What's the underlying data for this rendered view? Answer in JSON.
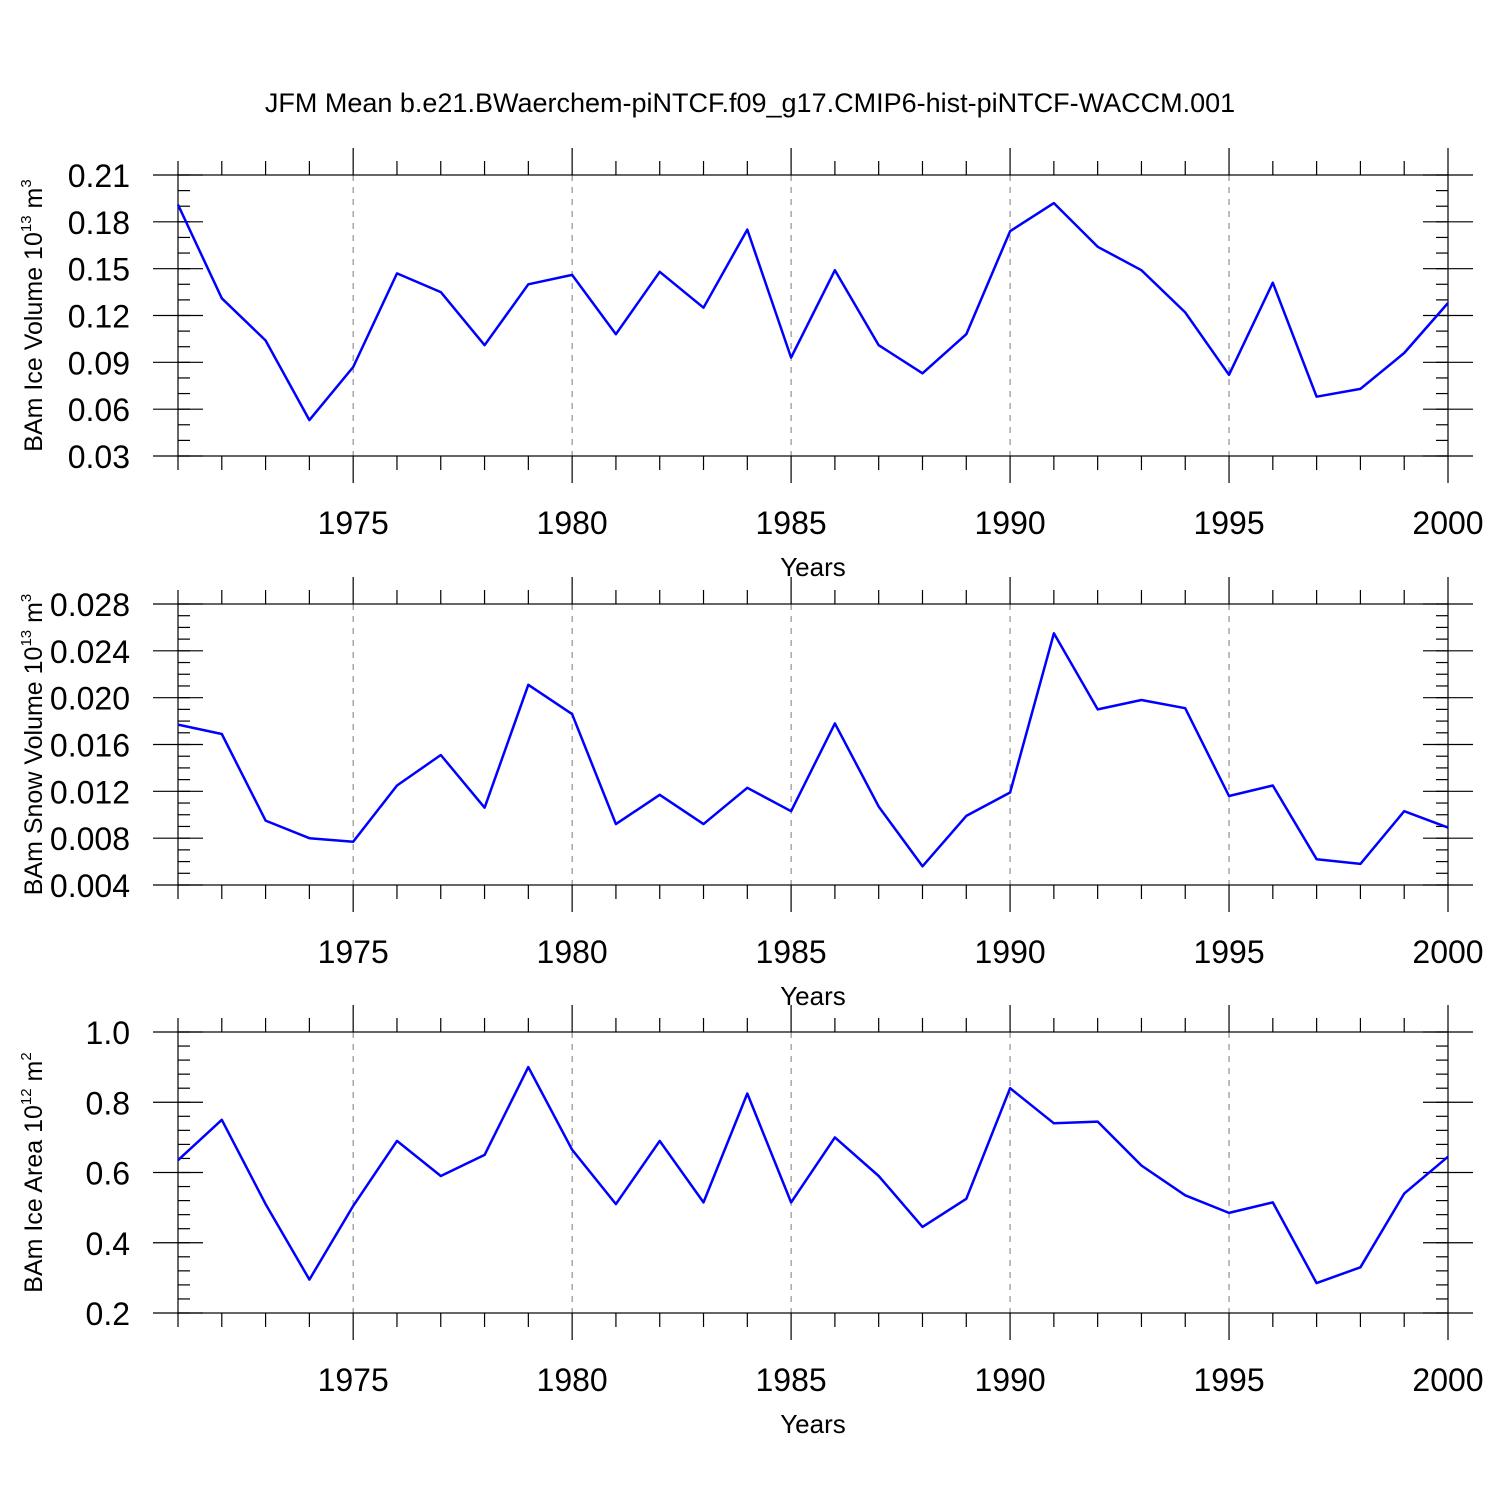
{
  "title": "JFM Mean b.e21.BWaerchem-piNTCF.f09_g17.CMIP6-hist-piNTCF-WACCM.001",
  "colors": {
    "series": "#0000ff",
    "grid": "#7a7a7a",
    "axis": "#000000"
  },
  "chart_data": [
    {
      "type": "line",
      "name": "ice-volume",
      "ylabel_main": "BAm Ice Volume 10",
      "ylabel_exp": "13",
      "ylabel_unit": " m",
      "ylabel_unit_exp": "3",
      "xlabel": "Years",
      "xlim": [
        1971,
        2000
      ],
      "ylim": [
        0.03,
        0.21
      ],
      "x_ticks": [
        1975,
        1980,
        1985,
        1990,
        1995,
        2000
      ],
      "x_tick_labels": [
        "1975",
        "1980",
        "1985",
        "1990",
        "1995",
        "2000"
      ],
      "y_ticks": [
        0.03,
        0.06,
        0.09,
        0.12,
        0.15,
        0.18,
        0.21
      ],
      "y_tick_labels": [
        "0.03",
        "0.06",
        "0.09",
        "0.12",
        "0.15",
        "0.18",
        "0.21"
      ],
      "y_minor_step": 0.01,
      "x": [
        1971,
        1972,
        1973,
        1974,
        1975,
        1976,
        1977,
        1978,
        1979,
        1980,
        1981,
        1982,
        1983,
        1984,
        1985,
        1986,
        1987,
        1988,
        1989,
        1990,
        1991,
        1992,
        1993,
        1994,
        1995,
        1996,
        1997,
        1998,
        1999,
        2000
      ],
      "y": [
        0.191,
        0.131,
        0.104,
        0.053,
        0.087,
        0.147,
        0.135,
        0.101,
        0.14,
        0.146,
        0.108,
        0.148,
        0.125,
        0.175,
        0.093,
        0.149,
        0.101,
        0.083,
        0.108,
        0.174,
        0.192,
        0.164,
        0.149,
        0.122,
        0.082,
        0.141,
        0.068,
        0.073,
        0.096,
        0.128
      ]
    },
    {
      "type": "line",
      "name": "snow-volume",
      "ylabel_main": "BAm Snow Volume 10",
      "ylabel_exp": "13",
      "ylabel_unit": " m",
      "ylabel_unit_exp": "3",
      "xlabel": "Years",
      "xlim": [
        1971,
        2000
      ],
      "ylim": [
        0.004,
        0.028
      ],
      "x_ticks": [
        1975,
        1980,
        1985,
        1990,
        1995,
        2000
      ],
      "x_tick_labels": [
        "1975",
        "1980",
        "1985",
        "1990",
        "1995",
        "2000"
      ],
      "y_ticks": [
        0.004,
        0.008,
        0.012,
        0.016,
        0.02,
        0.024,
        0.028
      ],
      "y_tick_labels": [
        "0.004",
        "0.008",
        "0.012",
        "0.016",
        "0.020",
        "0.024",
        "0.028"
      ],
      "y_minor_step": 0.001,
      "x": [
        1971,
        1972,
        1973,
        1974,
        1975,
        1976,
        1977,
        1978,
        1979,
        1980,
        1981,
        1982,
        1983,
        1984,
        1985,
        1986,
        1987,
        1988,
        1989,
        1990,
        1991,
        1992,
        1993,
        1994,
        1995,
        1996,
        1997,
        1998,
        1999,
        2000
      ],
      "y": [
        0.0177,
        0.0169,
        0.0095,
        0.008,
        0.0077,
        0.0125,
        0.0151,
        0.0106,
        0.0211,
        0.0186,
        0.0092,
        0.0117,
        0.0092,
        0.0123,
        0.0103,
        0.0178,
        0.0107,
        0.0056,
        0.0099,
        0.0119,
        0.0255,
        0.019,
        0.0198,
        0.0191,
        0.0116,
        0.0125,
        0.0062,
        0.0058,
        0.0103,
        0.0089
      ]
    },
    {
      "type": "line",
      "name": "ice-area",
      "ylabel_main": "BAm Ice Area 10",
      "ylabel_exp": "12",
      "ylabel_unit": " m",
      "ylabel_unit_exp": "2",
      "xlabel": "Years",
      "xlim": [
        1971,
        2000
      ],
      "ylim": [
        0.2,
        1.0
      ],
      "x_ticks": [
        1975,
        1980,
        1985,
        1990,
        1995,
        2000
      ],
      "x_tick_labels": [
        "1975",
        "1980",
        "1985",
        "1990",
        "1995",
        "2000"
      ],
      "y_ticks": [
        0.2,
        0.4,
        0.6,
        0.8,
        1.0
      ],
      "y_tick_labels": [
        "0.2",
        "0.4",
        "0.6",
        "0.8",
        "1.0"
      ],
      "y_minor_step": 0.04,
      "x": [
        1971,
        1972,
        1973,
        1974,
        1975,
        1976,
        1977,
        1978,
        1979,
        1980,
        1981,
        1982,
        1983,
        1984,
        1985,
        1986,
        1987,
        1988,
        1989,
        1990,
        1991,
        1992,
        1993,
        1994,
        1995,
        1996,
        1997,
        1998,
        1999,
        2000
      ],
      "y": [
        0.635,
        0.75,
        0.51,
        0.295,
        0.505,
        0.69,
        0.59,
        0.65,
        0.9,
        0.665,
        0.51,
        0.69,
        0.515,
        0.825,
        0.515,
        0.7,
        0.59,
        0.445,
        0.525,
        0.84,
        0.74,
        0.745,
        0.62,
        0.535,
        0.485,
        0.515,
        0.285,
        0.33,
        0.54,
        0.645
      ]
    }
  ]
}
